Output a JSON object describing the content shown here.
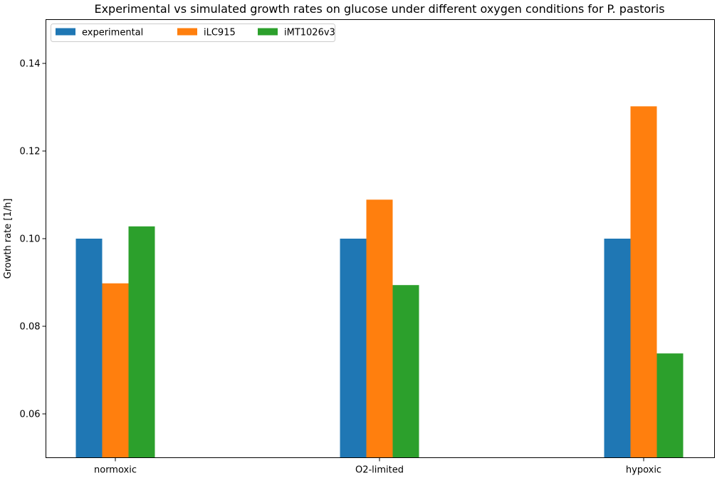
{
  "chart_data": {
    "type": "bar",
    "title": "Experimental vs simulated growth rates on glucose under different oxygen conditions for P. pastoris",
    "xlabel": "",
    "ylabel": "Growth rate [1/h]",
    "categories": [
      "normoxic",
      "O2-limited",
      "hypoxic"
    ],
    "series": [
      {
        "name": "experimental",
        "color": "#1f77b4",
        "values": [
          0.1,
          0.1,
          0.1
        ]
      },
      {
        "name": "iLC915",
        "color": "#ff7f0e",
        "values": [
          0.0898,
          0.1089,
          0.1302
        ]
      },
      {
        "name": "iMT1026v3",
        "color": "#2ca02c",
        "values": [
          0.1028,
          0.0894,
          0.0738
        ]
      }
    ],
    "ylim": [
      0.05,
      0.15
    ],
    "yticks": [
      0.06,
      0.08,
      0.1,
      0.12,
      0.14
    ],
    "ytick_labels": [
      "0.06",
      "0.08",
      "0.10",
      "0.12",
      "0.14"
    ],
    "grid": false,
    "legend_position": "top-left"
  }
}
